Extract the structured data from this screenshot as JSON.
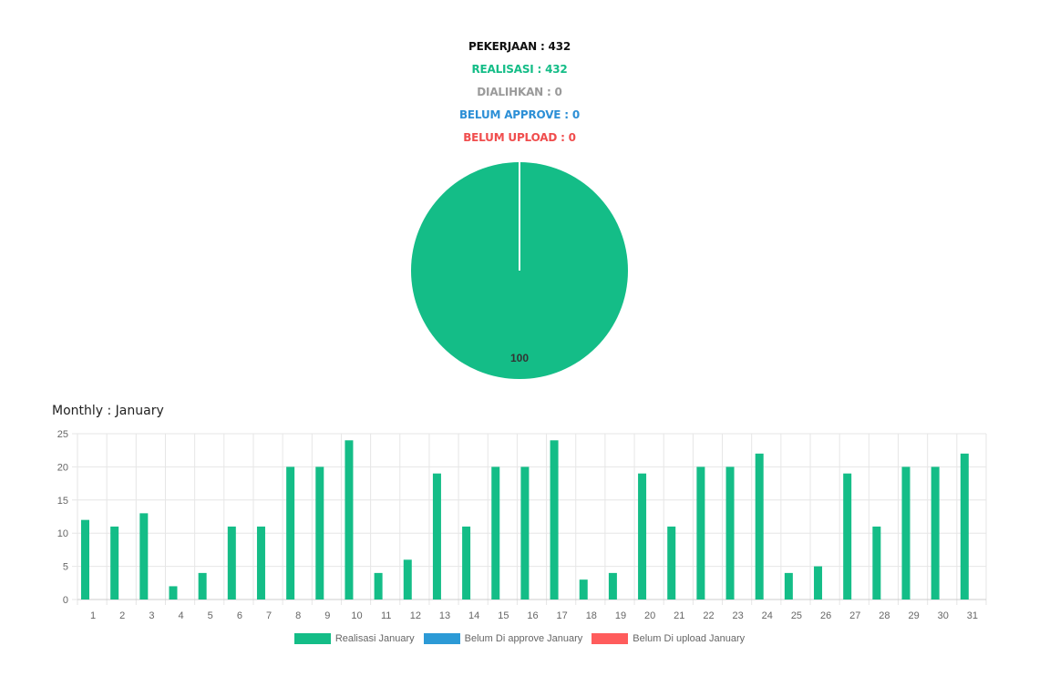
{
  "summary": {
    "pekerjaan": "PEKERJAAN : 432",
    "realisasi": "REALISASI : 432",
    "dialihkan": "DIALIHKAN : 0",
    "belum_approve": "BELUM APPROVE : 0",
    "belum_upload": "BELUM UPLOAD : 0"
  },
  "monthly_title": "Monthly : January",
  "colors": {
    "realisasi": "#14bd87",
    "belum_approve": "#2c9ad6",
    "belum_upload": "#ff5c5c",
    "grid": "#e6e6e6",
    "tick_text": "#666666"
  },
  "chart_data": [
    {
      "type": "pie",
      "slices": [
        {
          "label": "Realisasi",
          "value": 100
        },
        {
          "label": "Belum Di approve",
          "value": 0
        },
        {
          "label": "Belum Di upload",
          "value": 0
        }
      ],
      "data_labels": [
        "100"
      ]
    },
    {
      "type": "bar",
      "categories": [
        "1",
        "2",
        "3",
        "4",
        "5",
        "6",
        "7",
        "8",
        "9",
        "10",
        "11",
        "12",
        "13",
        "14",
        "15",
        "16",
        "17",
        "18",
        "19",
        "20",
        "21",
        "22",
        "23",
        "24",
        "25",
        "26",
        "27",
        "28",
        "29",
        "30",
        "31"
      ],
      "series": [
        {
          "name": "Realisasi January",
          "values": [
            12,
            11,
            13,
            2,
            4,
            11,
            11,
            20,
            20,
            24,
            4,
            6,
            19,
            11,
            20,
            20,
            24,
            3,
            4,
            19,
            11,
            20,
            20,
            22,
            4,
            5,
            19,
            11,
            20,
            20,
            22
          ]
        },
        {
          "name": "Belum Di approve January",
          "values": [
            0,
            0,
            0,
            0,
            0,
            0,
            0,
            0,
            0,
            0,
            0,
            0,
            0,
            0,
            0,
            0,
            0,
            0,
            0,
            0,
            0,
            0,
            0,
            0,
            0,
            0,
            0,
            0,
            0,
            0,
            0
          ]
        },
        {
          "name": "Belum Di upload January",
          "values": [
            0,
            0,
            0,
            0,
            0,
            0,
            0,
            0,
            0,
            0,
            0,
            0,
            0,
            0,
            0,
            0,
            0,
            0,
            0,
            0,
            0,
            0,
            0,
            0,
            0,
            0,
            0,
            0,
            0,
            0,
            0
          ]
        }
      ],
      "yticks": [
        "0",
        "5",
        "10",
        "15",
        "20",
        "25"
      ],
      "ylim": [
        0,
        25
      ],
      "grid": true,
      "legend_position": "bottom"
    }
  ]
}
